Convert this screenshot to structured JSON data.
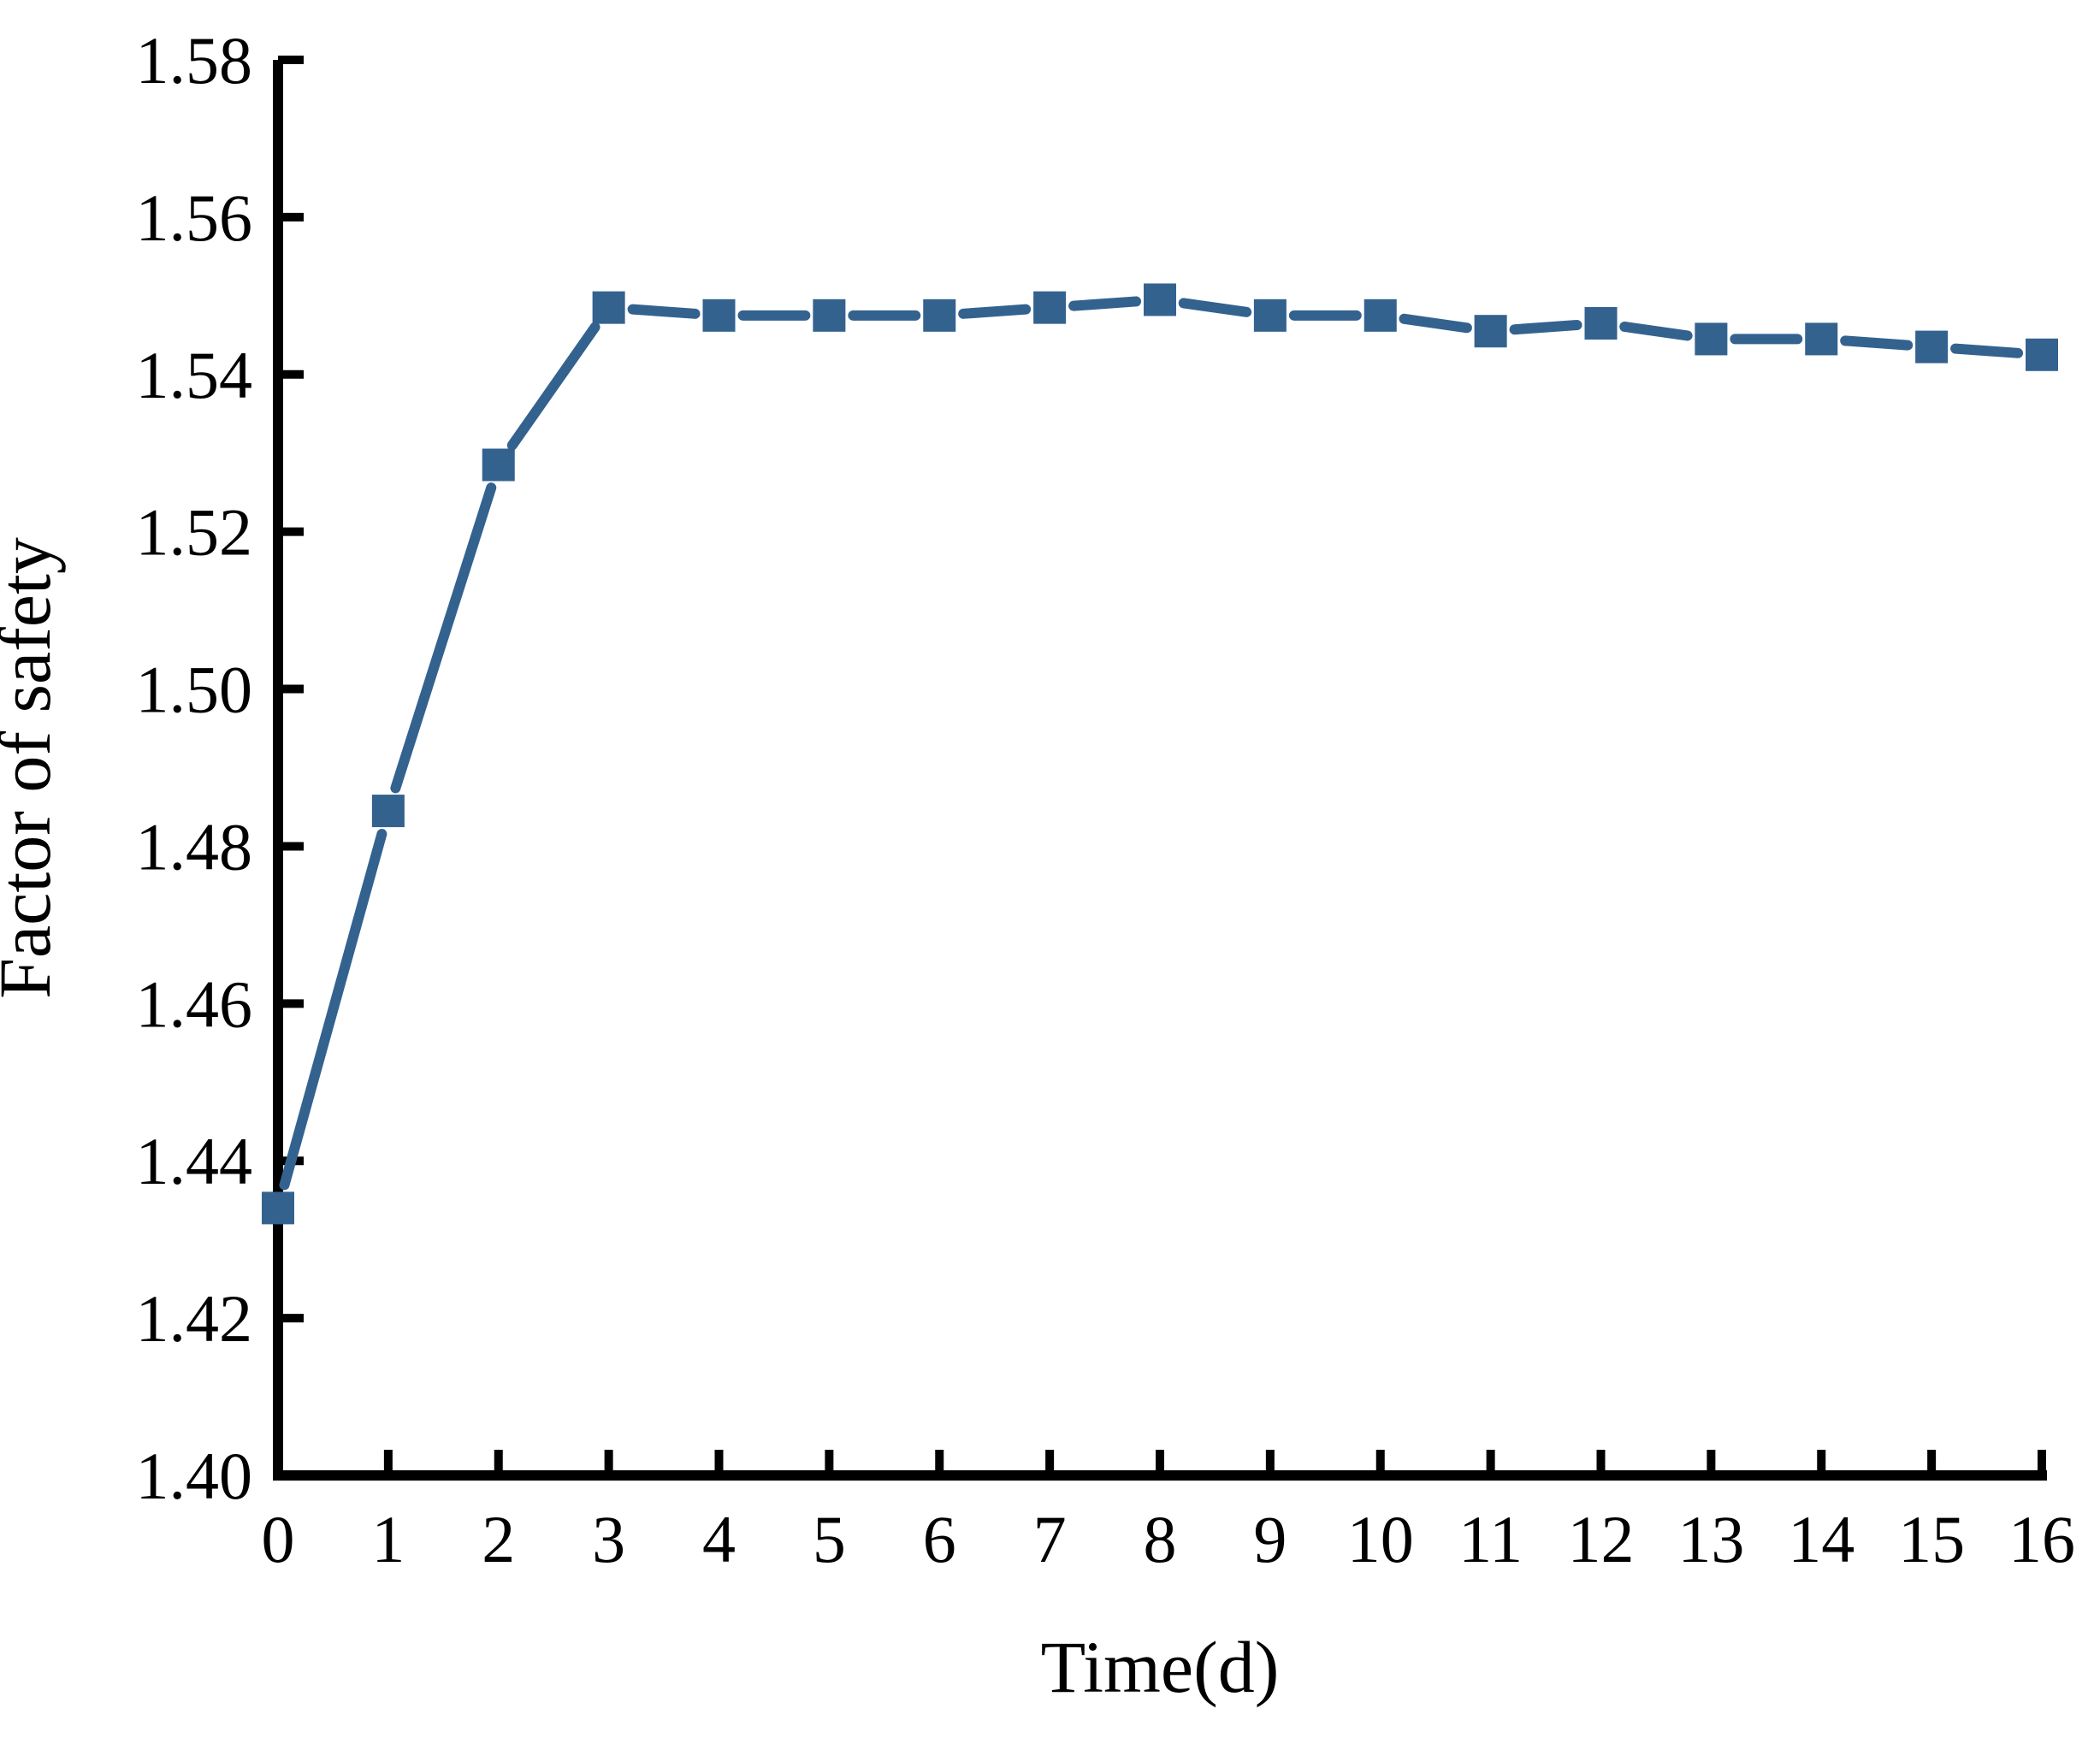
{
  "chart_data": {
    "type": "line",
    "title": "",
    "xlabel": "Time(d)",
    "ylabel": "Factor of safety",
    "x": [
      0,
      1,
      2,
      3,
      4,
      5,
      6,
      7,
      8,
      9,
      10,
      11,
      12,
      13,
      14,
      15,
      16
    ],
    "series": [
      {
        "name": "Factor of safety",
        "marker": "square",
        "color": "#33628F",
        "values": [
          1.434,
          1.4845,
          1.5285,
          1.5485,
          1.5475,
          1.5475,
          1.5475,
          1.5485,
          1.5495,
          1.5475,
          1.5475,
          1.5455,
          1.5465,
          1.5445,
          1.5445,
          1.5435,
          1.5425
        ]
      }
    ],
    "xlim": [
      0,
      16
    ],
    "ylim": [
      1.4,
      1.58
    ],
    "x_tick_labels": [
      "0",
      "1",
      "2",
      "3",
      "4",
      "5",
      "6",
      "7",
      "8",
      "9",
      "10",
      "11",
      "12",
      "13",
      "14",
      "15",
      "16"
    ],
    "y_tick_values": [
      1.4,
      1.42,
      1.44,
      1.46,
      1.48,
      1.5,
      1.52,
      1.54,
      1.56,
      1.58
    ],
    "y_tick_labels": [
      "1.40",
      "1.42",
      "1.44",
      "1.46",
      "1.48",
      "1.50",
      "1.52",
      "1.54",
      "1.56",
      "1.58"
    ],
    "grid": false,
    "legend": "none",
    "colors": {
      "axis": "#000000",
      "series": "#33628F"
    }
  }
}
